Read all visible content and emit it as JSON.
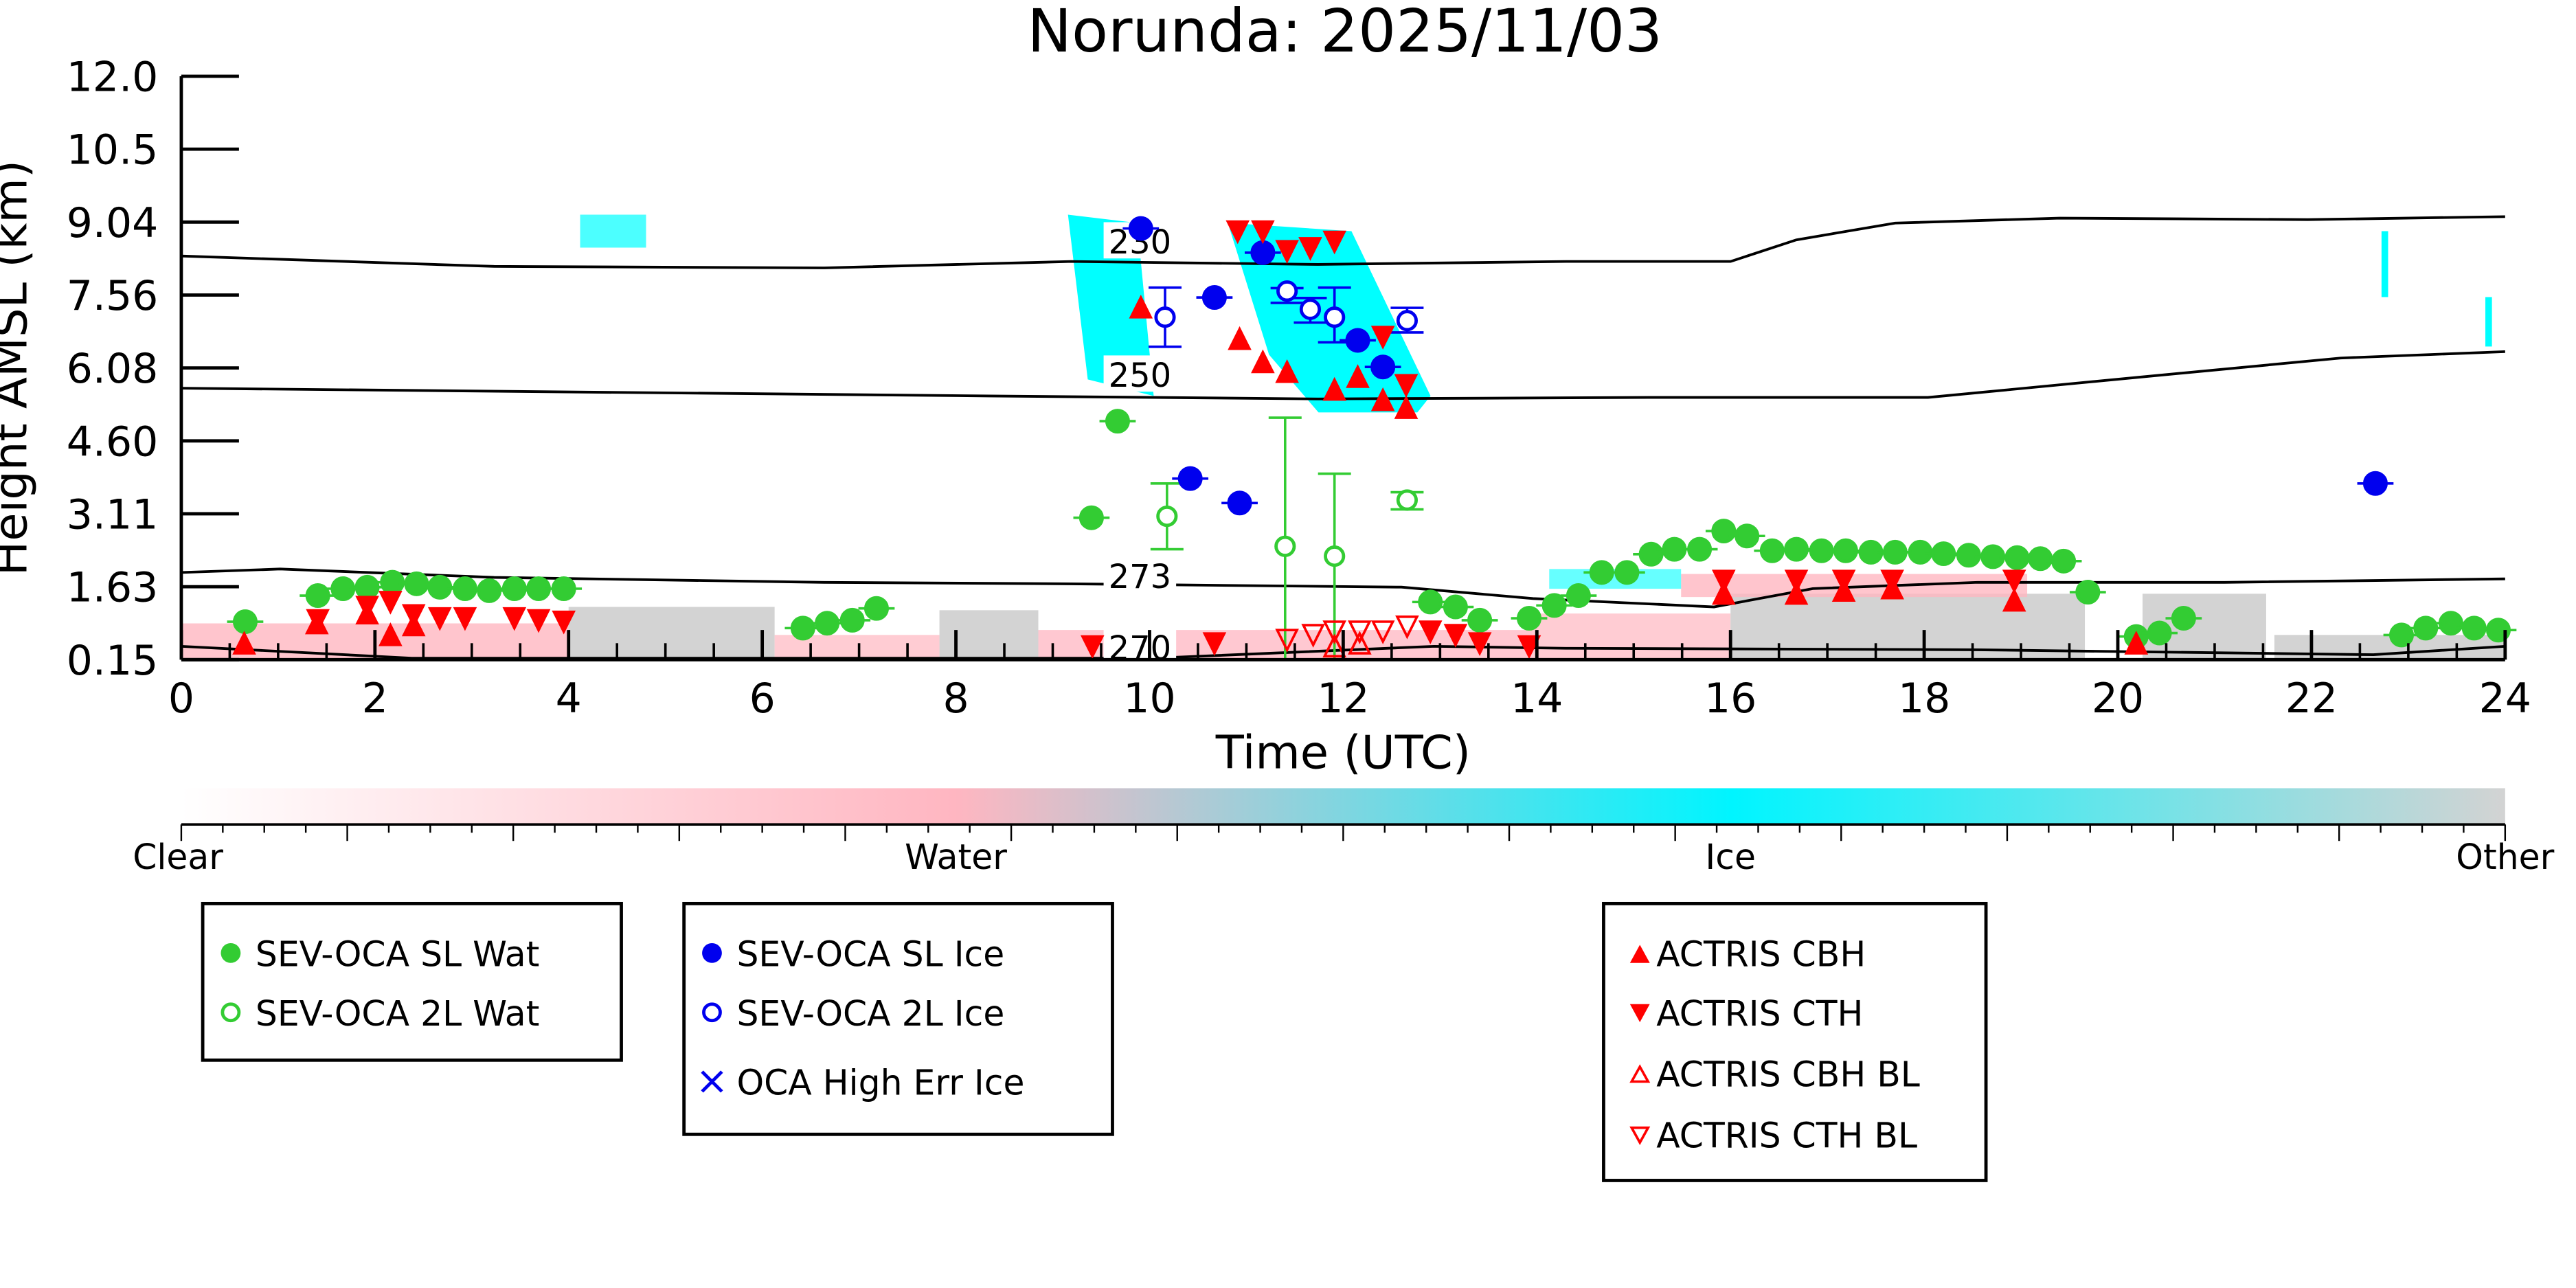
{
  "chart_data": {
    "type": "scatter",
    "title": "Norunda: 2025/11/03",
    "xlabel": "Time (UTC)",
    "ylabel": "Height AMSL (km)",
    "xlim": [
      0,
      24
    ],
    "ylim": [
      0.15,
      12.0
    ],
    "x_ticks": [
      "0",
      "2",
      "4",
      "6",
      "8",
      "10",
      "12",
      "14",
      "16",
      "18",
      "20",
      "22",
      "24"
    ],
    "y_ticks": [
      "0.15",
      "1.63",
      "3.11",
      "4.60",
      "6.08",
      "7.56",
      "9.04",
      "10.5",
      "12.0"
    ],
    "y_tick_values": [
      0.15,
      1.63,
      3.11,
      4.6,
      6.08,
      7.56,
      9.04,
      10.5,
      12.0
    ],
    "colorbar": {
      "labels": [
        "Clear",
        "Water",
        "Ice",
        "Other"
      ],
      "colors": [
        "#ffffff",
        "#ffb6c1",
        "#00ffff",
        "#d3d3d3"
      ]
    },
    "contours": [
      {
        "label": "230",
        "t": [
          0,
          3.23,
          6.64,
          9.19,
          11.74,
          14.3,
          16.0,
          16.68,
          17.7,
          19.4,
          21.96,
          24
        ],
        "h": [
          8.35,
          8.14,
          8.11,
          8.24,
          8.18,
          8.24,
          8.24,
          8.68,
          9.02,
          9.12,
          9.09,
          9.15
        ]
      },
      {
        "label": "250",
        "t": [
          0,
          8.34,
          11.74,
          15.15,
          18.04,
          20.26,
          22.3,
          24
        ],
        "h": [
          5.67,
          5.51,
          5.45,
          5.48,
          5.48,
          5.9,
          6.28,
          6.41
        ]
      },
      {
        "label": "273",
        "t": [
          0,
          1.02,
          3.23,
          6.64,
          9.19,
          12.6,
          13.96,
          15.83,
          16.85,
          18.55,
          21.1,
          24
        ],
        "h": [
          1.92,
          1.99,
          1.82,
          1.72,
          1.69,
          1.62,
          1.39,
          1.22,
          1.59,
          1.72,
          1.72,
          1.79
        ]
      },
      {
        "label": "270",
        "t": [
          0,
          2.38,
          10.04,
          12.94,
          14.3,
          18.55,
          22.64,
          24
        ],
        "h": [
          0.42,
          0.18,
          0.18,
          0.42,
          0.38,
          0.35,
          0.25,
          0.42
        ]
      }
    ],
    "series": [
      {
        "name": "SEV-OCA SL Wat",
        "marker": "circle",
        "filled": true,
        "color": "#33cc33",
        "t": [
          0.66,
          1.41,
          1.67,
          1.92,
          2.18,
          2.43,
          2.67,
          2.93,
          3.18,
          3.44,
          3.69,
          3.95,
          6.42,
          6.67,
          6.93,
          7.18,
          9.4,
          9.67,
          12.9,
          13.16,
          13.41,
          13.92,
          14.18,
          14.43,
          14.67,
          14.93,
          15.18,
          15.42,
          15.68,
          15.93,
          16.17,
          16.43,
          16.68,
          16.94,
          17.19,
          17.45,
          17.7,
          17.96,
          18.2,
          18.46,
          18.71,
          18.96,
          19.2,
          19.44,
          19.69,
          20.19,
          20.43,
          20.68,
          22.93,
          23.18,
          23.44,
          23.68,
          23.93
        ],
        "h": [
          0.92,
          1.45,
          1.59,
          1.62,
          1.72,
          1.69,
          1.62,
          1.59,
          1.55,
          1.59,
          1.59,
          1.59,
          0.79,
          0.89,
          0.95,
          1.19,
          3.03,
          5.0,
          1.32,
          1.22,
          0.95,
          0.99,
          1.25,
          1.45,
          1.92,
          1.92,
          2.29,
          2.39,
          2.39,
          2.76,
          2.66,
          2.36,
          2.39,
          2.36,
          2.36,
          2.33,
          2.33,
          2.33,
          2.3,
          2.27,
          2.24,
          2.22,
          2.2,
          2.15,
          1.52,
          0.62,
          0.69,
          0.99,
          0.65,
          0.79,
          0.89,
          0.79,
          0.75
        ]
      },
      {
        "name": "SEV-OCA 2L Wat",
        "marker": "circle",
        "filled": false,
        "color": "#33cc33",
        "t": [
          10.18,
          11.4,
          11.91,
          12.66
        ],
        "h": [
          3.06,
          2.45,
          2.25,
          3.39
        ],
        "err_low": [
          2.39,
          0.15,
          0.15,
          3.2
        ],
        "err_high": [
          3.73,
          5.07,
          3.93,
          3.55
        ]
      },
      {
        "name": "SEV-OCA SL Ice",
        "marker": "circle",
        "filled": true,
        "color": "#0000ee",
        "t": [
          9.91,
          10.67,
          11.17,
          12.15,
          12.41,
          10.42,
          10.93,
          22.66
        ],
        "h": [
          8.91,
          7.51,
          8.42,
          6.64,
          6.1,
          3.83,
          3.33,
          3.73
        ]
      },
      {
        "name": "SEV-OCA 2L Ice",
        "marker": "circle",
        "filled": false,
        "color": "#0000ee",
        "t": [
          10.16,
          11.42,
          11.66,
          11.91,
          12.66
        ],
        "h": [
          7.11,
          7.64,
          7.27,
          7.11,
          7.04
        ],
        "err_low": [
          6.51,
          7.4,
          7.0,
          6.6,
          6.8
        ],
        "err_high": [
          7.71,
          7.7,
          7.5,
          7.71,
          7.3
        ]
      },
      {
        "name": "OCA High Err Ice",
        "marker": "x",
        "filled": false,
        "color": "#0000ee",
        "t": [],
        "h": []
      },
      {
        "name": "ACTRIS CBH",
        "marker": "triangle-up",
        "filled": true,
        "color": "#ff0000",
        "t": [
          0.65,
          1.4,
          2.16,
          1.92,
          2.4,
          9.91,
          10.93,
          11.17,
          11.42,
          11.91,
          12.15,
          12.41,
          12.65,
          15.93,
          16.68,
          17.17,
          17.67,
          18.93,
          20.19
        ],
        "h": [
          0.48,
          0.89,
          0.65,
          1.09,
          0.85,
          7.31,
          6.67,
          6.2,
          6.0,
          5.64,
          5.9,
          5.43,
          5.27,
          1.49,
          1.49,
          1.55,
          1.6,
          1.35,
          0.48
        ]
      },
      {
        "name": "ACTRIS CTH",
        "marker": "triangle-down",
        "filled": true,
        "color": "#ff0000",
        "t": [
          1.41,
          1.92,
          2.16,
          2.4,
          2.67,
          2.93,
          3.44,
          3.69,
          3.95,
          10.91,
          11.17,
          11.42,
          11.66,
          11.91,
          12.41,
          12.65,
          15.93,
          16.68,
          17.17,
          17.67,
          18.93,
          10.67,
          9.41,
          13.41,
          12.9,
          13.92,
          13.16
        ],
        "h": [
          0.95,
          1.22,
          1.32,
          1.05,
          0.99,
          0.99,
          0.99,
          0.95,
          0.92,
          8.85,
          8.85,
          8.45,
          8.51,
          8.64,
          6.71,
          5.73,
          1.75,
          1.75,
          1.75,
          1.75,
          1.75,
          0.48,
          0.42,
          0.48,
          0.72,
          0.42,
          0.65
        ]
      },
      {
        "name": "ACTRIS CBH BL",
        "marker": "triangle-up",
        "filled": false,
        "color": "#ff0000",
        "t": [
          11.91,
          12.17
        ],
        "h": [
          0.42,
          0.48
        ]
      },
      {
        "name": "ACTRIS CTH BL",
        "marker": "triangle-down",
        "filled": false,
        "color": "#ff0000",
        "t": [
          11.42,
          11.69,
          11.91,
          12.17,
          12.41,
          12.66
        ],
        "h": [
          0.55,
          0.65,
          0.72,
          0.72,
          0.72,
          0.82
        ]
      }
    ]
  },
  "legends": [
    {
      "items": [
        "SEV-OCA SL Wat",
        "SEV-OCA 2L Wat"
      ]
    },
    {
      "items": [
        "SEV-OCA SL Ice",
        "SEV-OCA 2L Ice",
        "OCA High Err Ice"
      ]
    },
    {
      "items": [
        "ACTRIS CBH",
        "ACTRIS CTH",
        "ACTRIS CBH BL",
        "ACTRIS CTH BL"
      ]
    }
  ]
}
